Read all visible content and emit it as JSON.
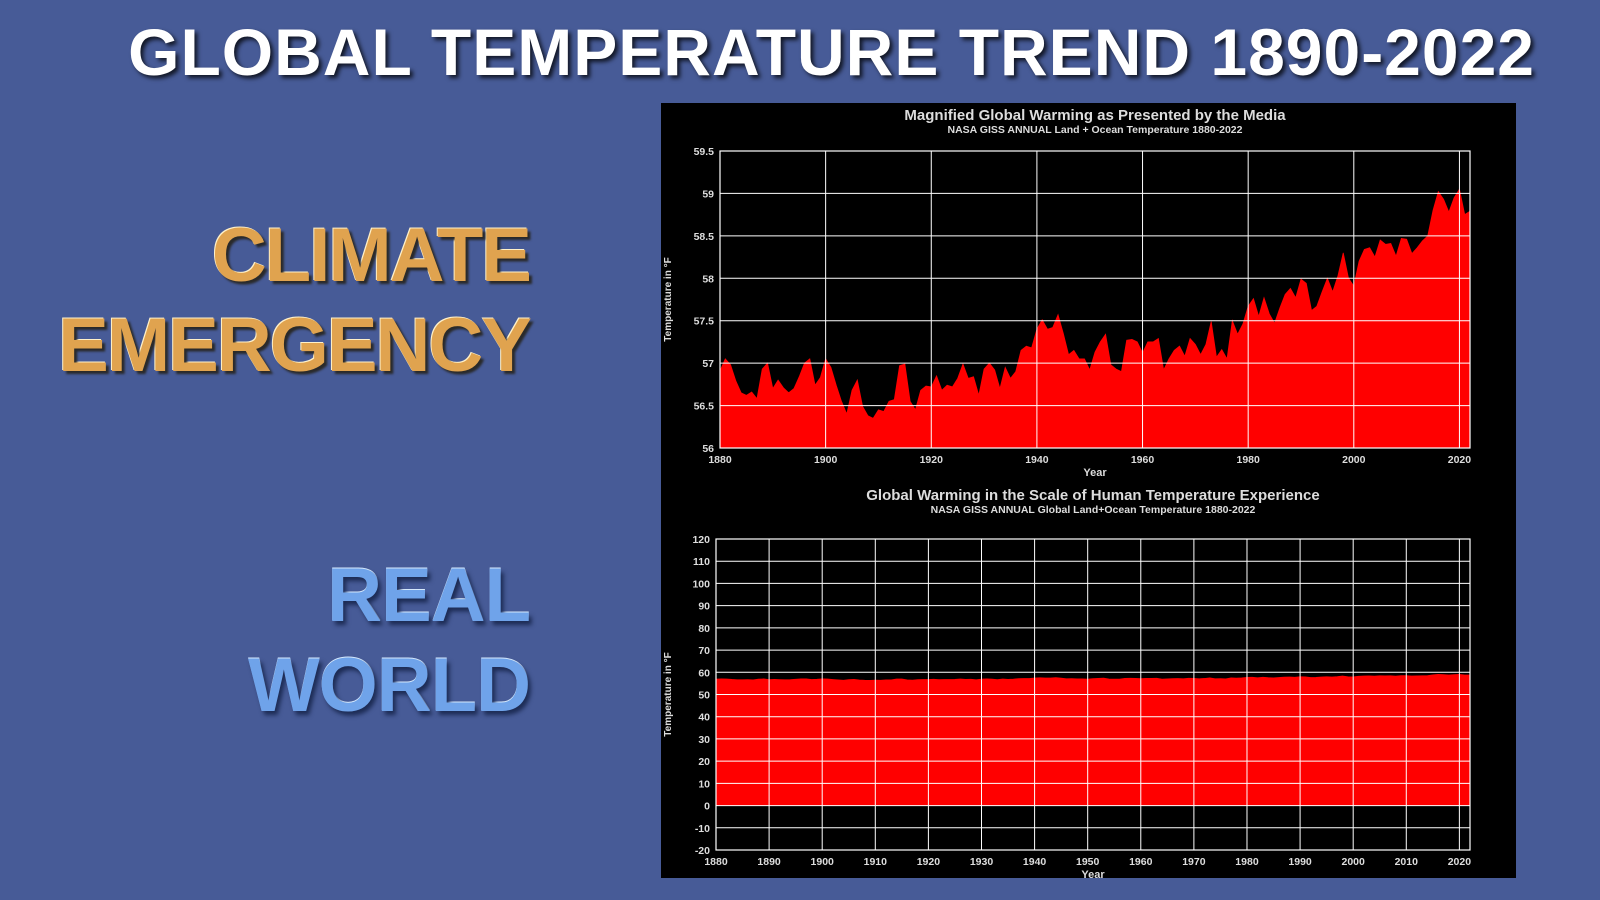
{
  "page": {
    "title": "GLOBAL TEMPERATURE TREND 1890-2022",
    "left_labels": {
      "climate": "CLIMATE",
      "emergency": "EMERGENCY",
      "real": "REAL",
      "world": "WORLD"
    },
    "colors": {
      "background": "#475b97",
      "chart_fill": "#ff0000",
      "chart_background": "#000000",
      "gridline": "#ffffff",
      "emergency_text": "#e0a34f",
      "real_world_text": "#6fa3ea"
    }
  },
  "chart_data": [
    {
      "type": "area",
      "title": "Magnified Global Warming as Presented by the Media",
      "subtitle": "NASA GISS ANNUAL Land + Ocean Temperature 1880-2022",
      "xlabel": "Year",
      "ylabel": "Temperature in °F",
      "xlim": [
        1880,
        2022
      ],
      "ylim": [
        56,
        59.5
      ],
      "xticks": [
        1880,
        1900,
        1920,
        1940,
        1960,
        1980,
        2000,
        2020
      ],
      "yticks": [
        56,
        56.5,
        57,
        57.5,
        58,
        58.5,
        59,
        59.5
      ],
      "ytick_labels": [
        "56",
        "56.5",
        "57",
        "57.5",
        "58",
        "58.5",
        "59",
        "59.5"
      ],
      "grid": true,
      "series": [
        {
          "x": [
            1880,
            1881,
            1882,
            1883,
            1884,
            1885,
            1886,
            1887,
            1888,
            1889,
            1890,
            1891,
            1892,
            1893,
            1894,
            1895,
            1896,
            1897,
            1898,
            1899,
            1900,
            1901,
            1902,
            1903,
            1904,
            1905,
            1906,
            1907,
            1908,
            1909,
            1910,
            1911,
            1912,
            1913,
            1914,
            1915,
            1916,
            1917,
            1918,
            1919,
            1920,
            1921,
            1922,
            1923,
            1924,
            1925,
            1926,
            1927,
            1928,
            1929,
            1930,
            1931,
            1932,
            1933,
            1934,
            1935,
            1936,
            1937,
            1938,
            1939,
            1940,
            1941,
            1942,
            1943,
            1944,
            1945,
            1946,
            1947,
            1948,
            1949,
            1950,
            1951,
            1952,
            1953,
            1954,
            1955,
            1956,
            1957,
            1958,
            1959,
            1960,
            1961,
            1962,
            1963,
            1964,
            1965,
            1966,
            1967,
            1968,
            1969,
            1970,
            1971,
            1972,
            1973,
            1974,
            1975,
            1976,
            1977,
            1978,
            1979,
            1980,
            1981,
            1982,
            1983,
            1984,
            1985,
            1986,
            1987,
            1988,
            1989,
            1990,
            1991,
            1992,
            1993,
            1994,
            1995,
            1996,
            1997,
            1998,
            1999,
            2000,
            2001,
            2002,
            2003,
            2004,
            2005,
            2006,
            2007,
            2008,
            2009,
            2010,
            2011,
            2012,
            2013,
            2014,
            2015,
            2016,
            2017,
            2018,
            2019,
            2020,
            2021,
            2022
          ],
          "y": [
            56.91,
            57.05,
            56.98,
            56.79,
            56.65,
            56.62,
            56.66,
            56.58,
            56.93,
            57.0,
            56.7,
            56.8,
            56.71,
            56.65,
            56.7,
            56.84,
            57.0,
            57.05,
            56.74,
            56.83,
            57.05,
            56.95,
            56.74,
            56.55,
            56.4,
            56.68,
            56.8,
            56.49,
            56.38,
            56.35,
            56.45,
            56.43,
            56.55,
            56.57,
            56.97,
            56.99,
            56.55,
            56.45,
            56.68,
            56.73,
            56.72,
            56.85,
            56.68,
            56.74,
            56.72,
            56.82,
            56.99,
            56.82,
            56.84,
            56.62,
            56.93,
            57.0,
            56.92,
            56.7,
            56.95,
            56.82,
            56.9,
            57.15,
            57.2,
            57.18,
            57.4,
            57.51,
            57.4,
            57.42,
            57.57,
            57.35,
            57.1,
            57.15,
            57.05,
            57.05,
            56.92,
            57.13,
            57.25,
            57.34,
            56.98,
            56.93,
            56.9,
            57.27,
            57.28,
            57.25,
            57.12,
            57.25,
            57.25,
            57.29,
            56.92,
            57.05,
            57.15,
            57.2,
            57.08,
            57.29,
            57.22,
            57.1,
            57.22,
            57.49,
            57.07,
            57.16,
            57.05,
            57.5,
            57.34,
            57.46,
            57.67,
            57.76,
            57.55,
            57.77,
            57.58,
            57.47,
            57.65,
            57.81,
            57.88,
            57.77,
            57.99,
            57.94,
            57.62,
            57.67,
            57.84,
            58.0,
            57.84,
            58.03,
            58.3,
            58.0,
            57.91,
            58.2,
            58.34,
            58.36,
            58.25,
            58.45,
            58.4,
            58.41,
            58.26,
            58.47,
            58.46,
            58.29,
            58.36,
            58.44,
            58.5,
            58.8,
            59.02,
            58.93,
            58.78,
            58.95,
            59.05,
            58.75,
            58.79
          ]
        }
      ]
    },
    {
      "type": "area",
      "title": "Global Warming in the Scale of Human Temperature Experience",
      "subtitle": "NASA GISS ANNUAL Global Land+Ocean Temperature 1880-2022",
      "xlabel": "Year",
      "ylabel": "Temperature in °F",
      "xlim": [
        1880,
        2022
      ],
      "ylim": [
        -20,
        120
      ],
      "xticks": [
        1880,
        1890,
        1900,
        1910,
        1920,
        1930,
        1940,
        1950,
        1960,
        1970,
        1980,
        1990,
        2000,
        2010,
        2020
      ],
      "yticks": [
        -20,
        -10,
        0,
        10,
        20,
        30,
        40,
        50,
        60,
        70,
        80,
        90,
        100,
        110,
        120
      ],
      "grid": true,
      "fill_base": 0,
      "series_ref": "same annual temperature values as chart 1"
    }
  ]
}
